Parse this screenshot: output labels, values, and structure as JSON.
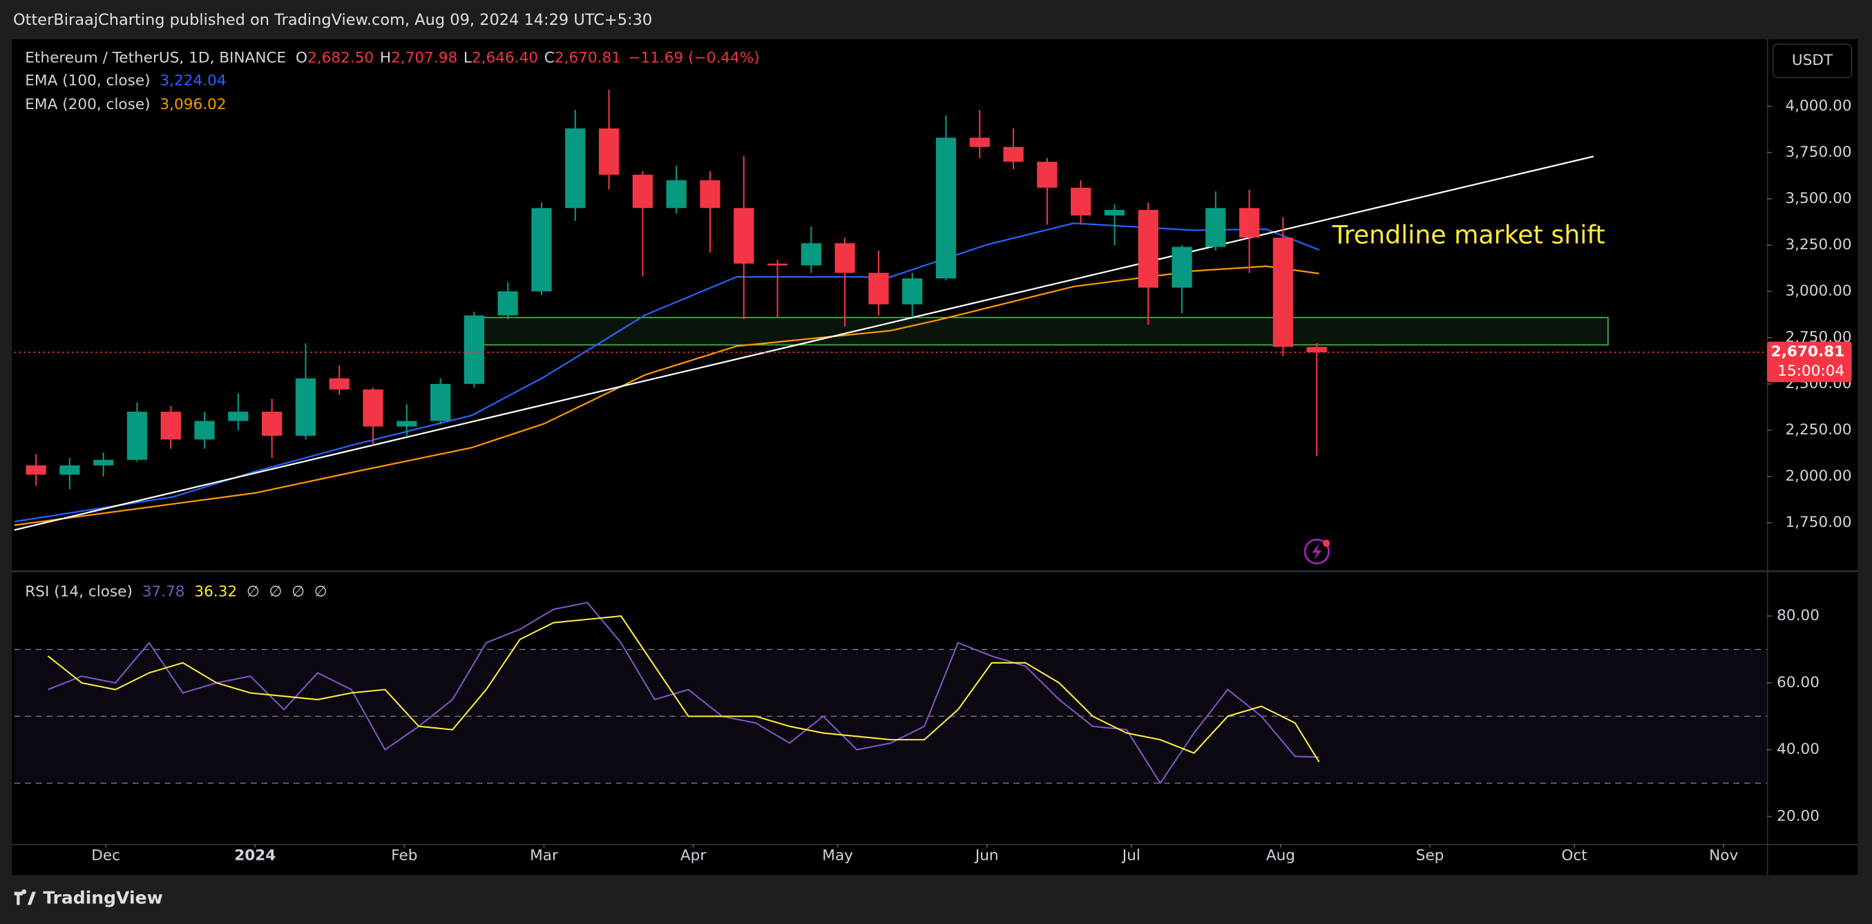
{
  "header": {
    "publisher": "OtterBiraajCharting published on TradingView.com, Aug 09, 2024 14:29 UTC+5:30",
    "currency_button": "USDT",
    "footer_logo": "TradingView"
  },
  "chart_data": [
    {
      "type": "candlestick",
      "title": "Ethereum / TetherUS, 1D, BINANCE",
      "ohlc_legend": {
        "labels": [
          "O",
          "H",
          "L",
          "C"
        ],
        "values": [
          {
            "value": 2682.5,
            "label": "2,682.50"
          },
          {
            "value": 2707.98,
            "label": "2,707.98"
          },
          {
            "value": 2646.4,
            "label": "2,646.40"
          },
          {
            "value": 2670.81,
            "label": "2,670.81"
          }
        ],
        "change": {
          "value": -11.69,
          "label": "−11.69"
        },
        "change_percent": {
          "value": -0.44,
          "label": "(−0.44%)"
        },
        "color": "#f23645"
      },
      "x": [
        "2023-11-13",
        "2023-11-20",
        "2023-11-27",
        "2023-12-04",
        "2023-12-11",
        "2023-12-18",
        "2023-12-25",
        "2024-01-01",
        "2024-01-08",
        "2024-01-15",
        "2024-01-22",
        "2024-01-29",
        "2024-02-05",
        "2024-02-12",
        "2024-02-19",
        "2024-02-26",
        "2024-03-04",
        "2024-03-11",
        "2024-03-18",
        "2024-03-25",
        "2024-04-01",
        "2024-04-08",
        "2024-04-15",
        "2024-04-22",
        "2024-04-29",
        "2024-05-06",
        "2024-05-13",
        "2024-05-20",
        "2024-05-27",
        "2024-06-03",
        "2024-06-10",
        "2024-06-17",
        "2024-06-24",
        "2024-07-01",
        "2024-07-08",
        "2024-07-15",
        "2024-07-22",
        "2024-07-29",
        "2024-08-05"
      ],
      "open": [
        2060,
        2010,
        2060,
        2090,
        2350,
        2200,
        2300,
        2350,
        2220,
        2530,
        2470,
        2270,
        2300,
        2500,
        2870,
        3000,
        3450,
        3880,
        3630,
        3450,
        3600,
        3450,
        3150,
        3140,
        3260,
        3100,
        2930,
        3070,
        3830,
        3780,
        3700,
        3560,
        3410,
        3440,
        3020,
        3240,
        3450,
        3290,
        2700
      ],
      "high": [
        2120,
        2100,
        2130,
        2400,
        2380,
        2350,
        2450,
        2420,
        2720,
        2600,
        2480,
        2390,
        2530,
        2890,
        3050,
        3480,
        3980,
        4090,
        3650,
        3680,
        3650,
        3730,
        3170,
        3350,
        3290,
        3220,
        3100,
        3950,
        3980,
        3880,
        3720,
        3600,
        3470,
        3480,
        3250,
        3540,
        3550,
        3400,
        2720
      ],
      "low": [
        1950,
        1930,
        2000,
        2080,
        2150,
        2150,
        2250,
        2100,
        2200,
        2440,
        2170,
        2220,
        2280,
        2480,
        2850,
        2980,
        3380,
        3550,
        3080,
        3420,
        3210,
        2850,
        2860,
        3100,
        2810,
        2870,
        2860,
        3060,
        3720,
        3660,
        3360,
        3360,
        3250,
        2820,
        2880,
        3220,
        3100,
        2650,
        2110
      ],
      "close": [
        2010,
        2060,
        2090,
        2350,
        2200,
        2300,
        2350,
        2220,
        2530,
        2470,
        2270,
        2300,
        2500,
        2870,
        3000,
        3450,
        3880,
        3630,
        3450,
        3600,
        3450,
        3150,
        3140,
        3260,
        3100,
        2930,
        3070,
        3830,
        3780,
        3700,
        3560,
        3410,
        3440,
        3020,
        3240,
        3450,
        3290,
        2700,
        2670.81
      ],
      "up_color": "#089981",
      "down_color": "#f23645",
      "overlays": [
        {
          "name": "EMA (100, close)",
          "color": "#2962ff",
          "legend_value": {
            "value": 3224.04,
            "label": "3,224.04"
          },
          "x": [
            "2023-11-12",
            "2023-12-15",
            "2024-01-01",
            "2024-01-22",
            "2024-02-15",
            "2024-03-01",
            "2024-03-22",
            "2024-04-10",
            "2024-05-12",
            "2024-06-01",
            "2024-06-19",
            "2024-07-14",
            "2024-07-29",
            "2024-08-09"
          ],
          "values": [
            1756,
            1890,
            2027,
            2175,
            2330,
            2537,
            2872,
            3078,
            3078,
            3252,
            3368,
            3330,
            3336,
            3224.04
          ]
        },
        {
          "name": "EMA (200, close)",
          "color": "#ff9800",
          "legend_value": {
            "value": 3096.02,
            "label": "3,096.02"
          },
          "x": [
            "2023-11-12",
            "2024-01-01",
            "2024-01-22",
            "2024-02-15",
            "2024-03-01",
            "2024-03-22",
            "2024-04-10",
            "2024-05-12",
            "2024-05-22",
            "2024-06-19",
            "2024-07-14",
            "2024-07-29",
            "2024-08-09"
          ],
          "values": [
            1737,
            1911,
            2027,
            2156,
            2285,
            2549,
            2704,
            2788,
            2846,
            3026,
            3110,
            3136,
            3096.02
          ]
        }
      ],
      "trendline": {
        "color": "#ffffff",
        "x": [
          "2023-11-12",
          "2024-10-05"
        ],
        "y": [
          1711,
          3729
        ]
      },
      "zone": {
        "color": "#4caf50",
        "x": [
          "2024-02-17",
          "2024-10-08"
        ],
        "y": [
          2711,
          2859
        ]
      },
      "annotation": {
        "text": "Trendline market shift",
        "color": "#ffeb3b"
      },
      "last_price": {
        "value": 2670.81,
        "label": "2,670.81",
        "color": "#f23645"
      },
      "countdown": "15:00:04",
      "xlim": [
        "2023-11-12",
        "2024-11-10"
      ],
      "ylim": [
        1498,
        4361
      ],
      "yticks": [
        {
          "value": 1750,
          "label": "1,750.00"
        },
        {
          "value": 2000,
          "label": "2,000.00"
        },
        {
          "value": 2250,
          "label": "2,250.00"
        },
        {
          "value": 2500,
          "label": "2,500.00"
        },
        {
          "value": 2750,
          "label": "2,750.00"
        },
        {
          "value": 3000,
          "label": "3,000.00"
        },
        {
          "value": 3250,
          "label": "3,250.00"
        },
        {
          "value": 3500,
          "label": "3,500.00"
        },
        {
          "value": 3750,
          "label": "3,750.00"
        },
        {
          "value": 4000,
          "label": "4,000.00"
        }
      ]
    },
    {
      "type": "line",
      "title": "RSI (14, close)",
      "na_markers": [
        "∅",
        "∅",
        "∅",
        "∅"
      ],
      "x": [
        "2023-11-19",
        "2023-11-26",
        "2023-12-03",
        "2023-12-10",
        "2023-12-17",
        "2023-12-24",
        "2023-12-31",
        "2024-01-07",
        "2024-01-14",
        "2024-01-21",
        "2024-01-28",
        "2024-02-04",
        "2024-02-11",
        "2024-02-18",
        "2024-02-25",
        "2024-03-03",
        "2024-03-10",
        "2024-03-17",
        "2024-03-24",
        "2024-03-31",
        "2024-04-07",
        "2024-04-14",
        "2024-04-21",
        "2024-04-28",
        "2024-05-05",
        "2024-05-12",
        "2024-05-19",
        "2024-05-26",
        "2024-06-02",
        "2024-06-09",
        "2024-06-16",
        "2024-06-23",
        "2024-06-30",
        "2024-07-07",
        "2024-07-14",
        "2024-07-21",
        "2024-07-28",
        "2024-08-04",
        "2024-08-09"
      ],
      "series": [
        {
          "color": "#7e57c2",
          "values": [
            58,
            62,
            60,
            72,
            57,
            60,
            62,
            52,
            63,
            58,
            40,
            47,
            55,
            72,
            76,
            82,
            84,
            72,
            55,
            58,
            50,
            48,
            42,
            50,
            40,
            42,
            47,
            72,
            68,
            65,
            55,
            47,
            46,
            30,
            45,
            58,
            50,
            38,
            37.78
          ]
        },
        {
          "color": "#ffeb3b",
          "values": [
            68,
            60,
            58,
            63,
            66,
            60,
            57,
            56,
            55,
            57,
            58,
            47,
            46,
            58,
            73,
            78,
            79,
            80,
            65,
            50,
            50,
            50,
            47,
            45,
            44,
            43,
            43,
            52,
            66,
            66,
            60,
            50,
            45,
            43,
            39,
            50,
            53,
            48,
            36.32
          ]
        }
      ],
      "levels": [
        70,
        50,
        30
      ],
      "xlim": [
        "2023-11-12",
        "2024-11-10"
      ],
      "ylim": [
        11.8,
        92.5
      ],
      "yticks": [
        {
          "value": 20,
          "label": "20.00"
        },
        {
          "value": 40,
          "label": "40.00"
        },
        {
          "value": 60,
          "label": "60.00"
        },
        {
          "value": 80,
          "label": "80.00"
        }
      ],
      "xticks": [
        {
          "value": "2023-12-01",
          "label": "Dec"
        },
        {
          "value": "2024-01-01",
          "label": "2024"
        },
        {
          "value": "2024-02-01",
          "label": "Feb"
        },
        {
          "value": "2024-03-01",
          "label": "Mar"
        },
        {
          "value": "2024-04-01",
          "label": "Apr"
        },
        {
          "value": "2024-05-01",
          "label": "May"
        },
        {
          "value": "2024-06-01",
          "label": "Jun"
        },
        {
          "value": "2024-07-01",
          "label": "Jul"
        },
        {
          "value": "2024-08-01",
          "label": "Aug"
        },
        {
          "value": "2024-09-01",
          "label": "Sep"
        },
        {
          "value": "2024-10-01",
          "label": "Oct"
        },
        {
          "value": "2024-11-01",
          "label": "Nov"
        }
      ]
    }
  ]
}
